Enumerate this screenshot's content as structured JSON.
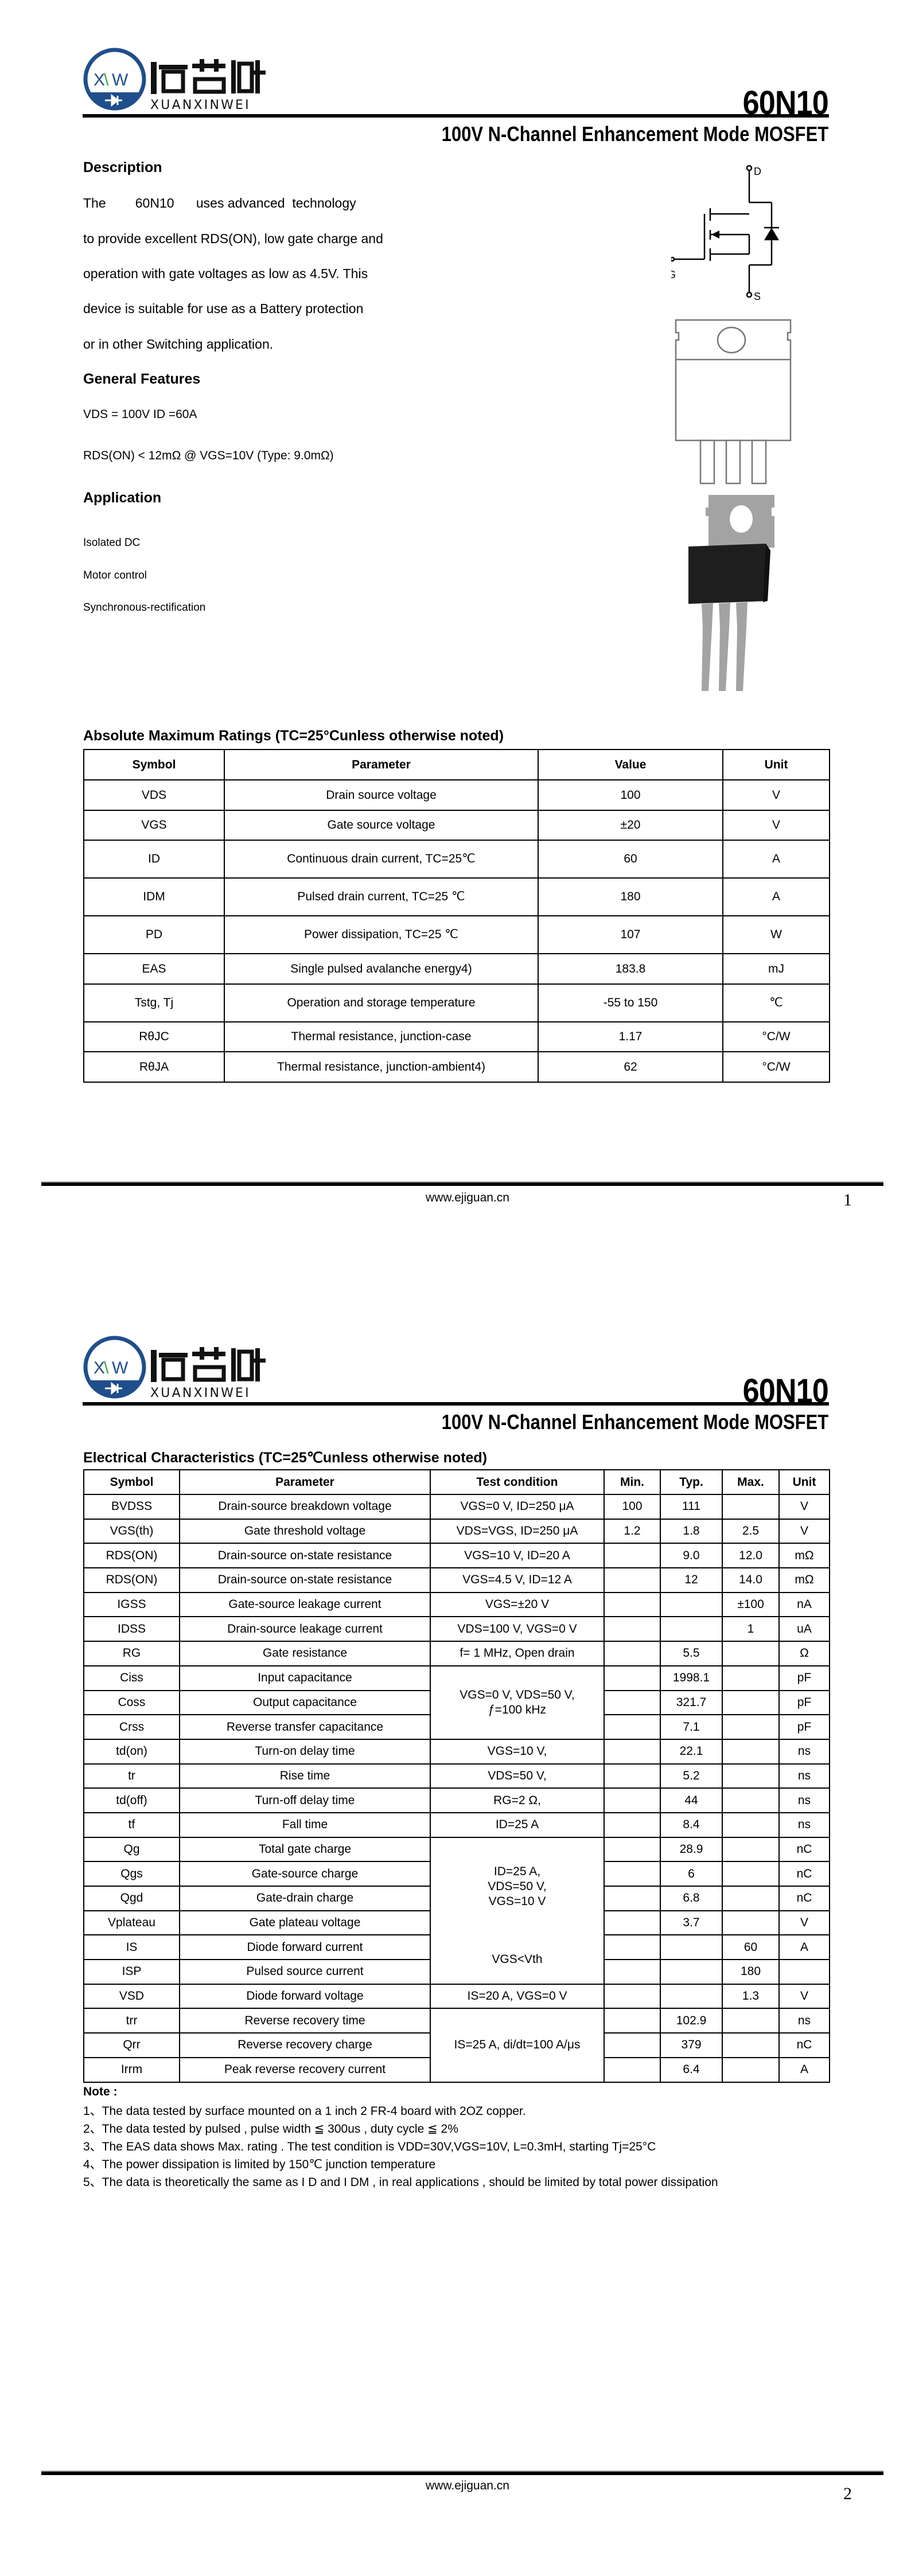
{
  "brand": {
    "logo_text_cn": "烜芯微",
    "logo_text_en": "XUANXINWEI",
    "logo_mark": "XW",
    "brand_color": "#1f4e8c",
    "accent_color": "#3aa537"
  },
  "header": {
    "part_number": "60N10",
    "subtitle": "100V N-Channel Enhancement Mode MOSFET"
  },
  "page1": {
    "description": {
      "heading": "Description",
      "lines": [
        "The        60N10      uses advanced  technology",
        "to provide excellent RDS(ON), low gate charge and",
        "operation with gate voltages as low as 4.5V. This",
        "device is suitable for use as a Battery protection",
        "or in other Switching application."
      ]
    },
    "features": {
      "heading": "General Features",
      "items": [
        "VDS = 100V  ID =60A",
        "RDS(ON) < 12mΩ @ VGS=10V (Type:  9.0mΩ)"
      ]
    },
    "application": {
      "heading": "Application",
      "items": [
        "Isolated DC",
        "Motor control",
        "Synchronous-rectification"
      ]
    },
    "symbol_labels": {
      "drain": "D",
      "gate": "G",
      "source": "S"
    },
    "abs_max": {
      "heading": "Absolute Maximum Ratings (TC=25°Cunless otherwise noted)",
      "columns": [
        "Symbol",
        "Parameter",
        "Value",
        "Unit"
      ],
      "rows": [
        [
          "VDS",
          "Drain source voltage",
          "100",
          "V"
        ],
        [
          "VGS",
          "Gate source voltage",
          "±20",
          "V"
        ],
        [
          "ID",
          "Continuous drain current, TC=25℃",
          "60",
          "A"
        ],
        [
          "IDM",
          "Pulsed drain current, TC=25 ℃",
          "180",
          "A"
        ],
        [
          "PD",
          "Power dissipation, TC=25 ℃",
          "107",
          "W"
        ],
        [
          "EAS",
          "Single pulsed avalanche energy4)",
          "183.8",
          "mJ"
        ],
        [
          "Tstg,  Tj",
          "Operation and storage temperature",
          "-55 to 150",
          "℃"
        ],
        [
          "RθJC",
          "Thermal resistance, junction-case",
          "1.17",
          "°C/W"
        ],
        [
          "RθJA",
          "Thermal resistance, junction-ambient4)",
          "62",
          "°C/W"
        ]
      ]
    },
    "footer": {
      "url": "www.ejiguan.cn",
      "page": "1"
    }
  },
  "page2": {
    "elec": {
      "heading": "Electrical Characteristics (TC=25℃unless otherwise noted)",
      "columns": [
        "Symbol",
        "Parameter",
        "Test condition",
        "Min.",
        "Typ.",
        "Max.",
        "Unit"
      ],
      "rows": [
        [
          "BVDSS",
          "Drain-source breakdown voltage",
          "VGS=0 V, ID=250 μA",
          "100",
          "111",
          "",
          "V"
        ],
        [
          "VGS(th)",
          "Gate threshold voltage",
          "VDS=VGS, ID=250 μA",
          "1.2",
          "1.8",
          "2.5",
          "V"
        ],
        [
          "RDS(ON)",
          "Drain-source on-state resistance",
          "VGS=10 V, ID=20 A",
          "",
          "9.0",
          "12.0",
          "mΩ"
        ],
        [
          "RDS(ON)",
          "Drain-source on-state resistance",
          "VGS=4.5 V, ID=12 A",
          "",
          "12",
          "14.0",
          "mΩ"
        ],
        [
          "IGSS",
          "Gate-source leakage current",
          "VGS=±20 V",
          "",
          "",
          "±100",
          "nA"
        ],
        [
          "IDSS",
          "Drain-source leakage current",
          "VDS=100 V, VGS=0 V",
          "",
          "",
          "1",
          "uA"
        ],
        [
          "RG",
          "Gate resistance",
          "f= 1 MHz,  Open drain",
          "",
          "5.5",
          "",
          "Ω"
        ],
        [
          "Ciss",
          "Input capacitance",
          "VGS=0 V,  VDS=50 V,\nƒ=100 kHz",
          "",
          "1998.1",
          "",
          "pF"
        ],
        [
          "Coss",
          "Output capacitance",
          "",
          "",
          "321.7",
          "",
          "pF"
        ],
        [
          "Crss",
          "Reverse transfer capacitance",
          "",
          "",
          "7.1",
          "",
          "pF"
        ],
        [
          "td(on)",
          "Turn-on delay time",
          "VGS=10 V,",
          "",
          "22.1",
          "",
          "ns"
        ],
        [
          "tr",
          "Rise time",
          "VDS=50 V,",
          "",
          "5.2",
          "",
          "ns"
        ],
        [
          "td(off)",
          "Turn-off delay time",
          "RG=2 Ω,",
          "",
          "44",
          "",
          "ns"
        ],
        [
          "tf",
          "Fall time",
          "ID=25 A",
          "",
          "8.4",
          "",
          "ns"
        ],
        [
          "Qg",
          "Total gate charge",
          "ID=25 A,\nVDS=50 V,\nVGS=10 V",
          "",
          "28.9",
          "",
          "nC"
        ],
        [
          "Qgs",
          "Gate-source charge",
          "",
          "",
          "6",
          "",
          "nC"
        ],
        [
          "Qgd",
          "Gate-drain charge",
          "",
          "",
          "6.8",
          "",
          "nC"
        ],
        [
          "Vplateau",
          "Gate plateau voltage",
          "",
          "",
          "3.7",
          "",
          "V"
        ],
        [
          "IS",
          "Diode forward current",
          "VGS<Vth",
          "",
          "",
          "60",
          "A"
        ],
        [
          "ISP",
          "Pulsed source current",
          "",
          "",
          "",
          "180",
          ""
        ],
        [
          "VSD",
          "Diode forward voltage",
          "IS=20 A, VGS=0 V",
          "",
          "",
          "1.3",
          "V"
        ],
        [
          "trr",
          "Reverse recovery time",
          "IS=25 A,  di/dt=100 A/μs",
          "",
          "102.9",
          "",
          "ns"
        ],
        [
          "Qrr",
          "Reverse recovery charge",
          "",
          "",
          "379",
          "",
          "nC"
        ],
        [
          "Irrm",
          "Peak reverse recovery current",
          "",
          "",
          "6.4",
          "",
          "A"
        ]
      ]
    },
    "notes": {
      "heading": "Note :",
      "items": [
        "1、The data tested by surface mounted on a 1 inch 2  FR-4 board with 2OZ copper.",
        "2、The data tested by pulsed , pulse width ≦ 300us , duty cycle ≦ 2%",
        "3、The EAS data shows Max. rating . The test condition is VDD=30V,VGS=10V, L=0.3mH, starting Tj=25°C",
        "4、The power dissipation is limited by 150℃ junction temperature",
        "5、The data is theoretically the same as I D and I DM , in real applications , should be limited by total power dissipation"
      ]
    },
    "footer": {
      "url": "www.ejiguan.cn",
      "page": "2"
    }
  }
}
